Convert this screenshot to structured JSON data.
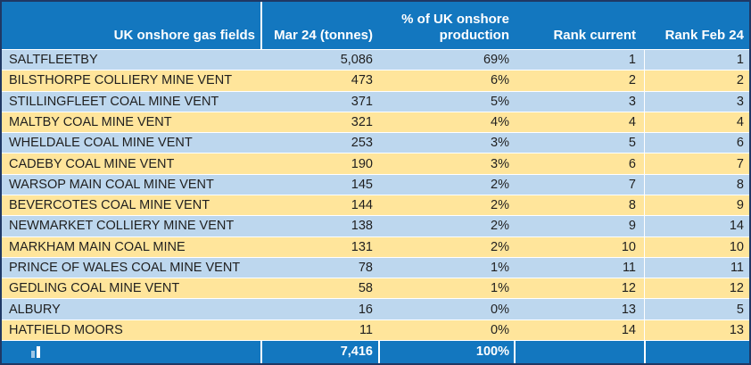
{
  "table": {
    "title_context": "UK onshore gas fields monthly production ranking",
    "header": {
      "col_field": "UK onshore gas fields",
      "col_tonnes": "Mar 24 (tonnes)",
      "col_pct_line1": "% of UK onshore",
      "col_pct_line2": "production",
      "col_rank_current": "Rank current",
      "col_rank_feb": "Rank Feb 24"
    },
    "rows": [
      {
        "field": "SALTFLEETBY",
        "tonnes": "5,086",
        "pct": "69%",
        "rank_current": "1",
        "rank_feb24": "1"
      },
      {
        "field": "BILSTHORPE COLLIERY MINE VENT",
        "tonnes": "473",
        "pct": "6%",
        "rank_current": "2",
        "rank_feb24": "2"
      },
      {
        "field": "STILLINGFLEET COAL MINE VENT",
        "tonnes": "371",
        "pct": "5%",
        "rank_current": "3",
        "rank_feb24": "3"
      },
      {
        "field": "MALTBY COAL MINE VENT",
        "tonnes": "321",
        "pct": "4%",
        "rank_current": "4",
        "rank_feb24": "4"
      },
      {
        "field": "WHELDALE COAL MINE VENT",
        "tonnes": "253",
        "pct": "3%",
        "rank_current": "5",
        "rank_feb24": "6"
      },
      {
        "field": "CADEBY COAL MINE VENT",
        "tonnes": "190",
        "pct": "3%",
        "rank_current": "6",
        "rank_feb24": "7"
      },
      {
        "field": "WARSOP MAIN COAL MINE VENT",
        "tonnes": "145",
        "pct": "2%",
        "rank_current": "7",
        "rank_feb24": "8"
      },
      {
        "field": "BEVERCOTES COAL MINE VENT",
        "tonnes": "144",
        "pct": "2%",
        "rank_current": "8",
        "rank_feb24": "9"
      },
      {
        "field": "NEWMARKET COLLIERY MINE VENT",
        "tonnes": "138",
        "pct": "2%",
        "rank_current": "9",
        "rank_feb24": "14"
      },
      {
        "field": "MARKHAM MAIN COAL MINE",
        "tonnes": "131",
        "pct": "2%",
        "rank_current": "10",
        "rank_feb24": "10"
      },
      {
        "field": "PRINCE OF WALES COAL MINE VENT",
        "tonnes": "78",
        "pct": "1%",
        "rank_current": "11",
        "rank_feb24": "11"
      },
      {
        "field": "GEDLING COAL MINE VENT",
        "tonnes": "58",
        "pct": "1%",
        "rank_current": "12",
        "rank_feb24": "12"
      },
      {
        "field": "ALBURY",
        "tonnes": "16",
        "pct": "0%",
        "rank_current": "13",
        "rank_feb24": "5"
      },
      {
        "field": "HATFIELD MOORS",
        "tonnes": "11",
        "pct": "0%",
        "rank_current": "14",
        "rank_feb24": "13"
      }
    ],
    "footer": {
      "icon": "bar-chart-icon",
      "tonnes_total": "7,416",
      "pct_total": "100%",
      "rank_current": "",
      "rank_feb24": ""
    }
  },
  "colors": {
    "header_blue": "#1377BF",
    "row_light_blue": "#BDD7EE",
    "row_light_yellow": "#FFE59B",
    "outer_border_navy": "#1F3864",
    "header_text": "#FFFFFF",
    "body_text": "#1F1F1F",
    "separator": "#FFFFFF"
  }
}
